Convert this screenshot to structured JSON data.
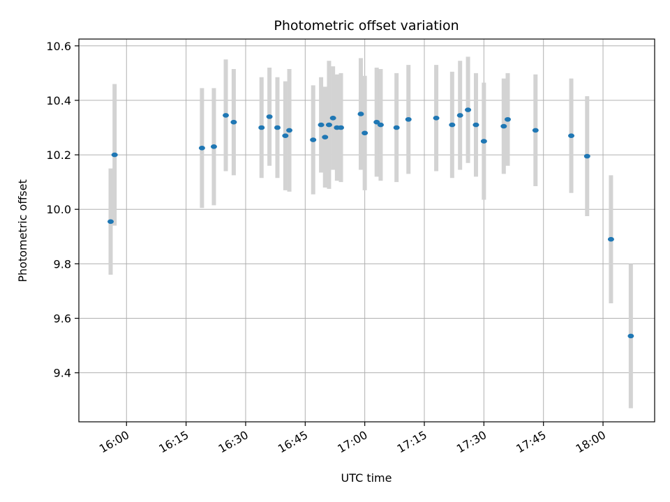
{
  "chart_data": {
    "type": "scatter",
    "title": "Photometric offset variation",
    "xlabel": "UTC time",
    "ylabel": "Photometric offset",
    "x_ticks": [
      "16:00",
      "16:15",
      "16:30",
      "16:45",
      "17:00",
      "17:15",
      "17:30",
      "17:45",
      "18:00"
    ],
    "y_ticks": [
      "9.4",
      "9.6",
      "9.8",
      "10.0",
      "10.2",
      "10.4",
      "10.6"
    ],
    "xlim": [
      "15:48",
      "18:13"
    ],
    "ylim": [
      9.22,
      10.625
    ],
    "grid": true,
    "colors": {
      "point": "#1f77b4",
      "errorbar": "#d3d3d3",
      "grid": "#b0b0b0"
    },
    "series": [
      {
        "points": [
          {
            "x": "15:56",
            "y": 9.955,
            "err": 0.195
          },
          {
            "x": "15:57",
            "y": 10.2,
            "err": 0.26
          },
          {
            "x": "16:19",
            "y": 10.225,
            "err": 0.22
          },
          {
            "x": "16:22",
            "y": 10.23,
            "err": 0.215
          },
          {
            "x": "16:25",
            "y": 10.345,
            "err": 0.205
          },
          {
            "x": "16:27",
            "y": 10.32,
            "err": 0.195
          },
          {
            "x": "16:34",
            "y": 10.3,
            "err": 0.185
          },
          {
            "x": "16:36",
            "y": 10.34,
            "err": 0.18
          },
          {
            "x": "16:38",
            "y": 10.3,
            "err": 0.185
          },
          {
            "x": "16:40",
            "y": 10.27,
            "err": 0.2
          },
          {
            "x": "16:41",
            "y": 10.29,
            "err": 0.225
          },
          {
            "x": "16:47",
            "y": 10.255,
            "err": 0.2
          },
          {
            "x": "16:49",
            "y": 10.31,
            "err": 0.175
          },
          {
            "x": "16:50",
            "y": 10.265,
            "err": 0.185
          },
          {
            "x": "16:51",
            "y": 10.31,
            "err": 0.235
          },
          {
            "x": "16:52",
            "y": 10.335,
            "err": 0.19
          },
          {
            "x": "16:53",
            "y": 10.3,
            "err": 0.195
          },
          {
            "x": "16:54",
            "y": 10.3,
            "err": 0.2
          },
          {
            "x": "16:59",
            "y": 10.35,
            "err": 0.205
          },
          {
            "x": "17:00",
            "y": 10.28,
            "err": 0.21
          },
          {
            "x": "17:03",
            "y": 10.32,
            "err": 0.2
          },
          {
            "x": "17:04",
            "y": 10.31,
            "err": 0.205
          },
          {
            "x": "17:08",
            "y": 10.3,
            "err": 0.2
          },
          {
            "x": "17:11",
            "y": 10.33,
            "err": 0.2
          },
          {
            "x": "17:18",
            "y": 10.335,
            "err": 0.195
          },
          {
            "x": "17:22",
            "y": 10.31,
            "err": 0.195
          },
          {
            "x": "17:24",
            "y": 10.345,
            "err": 0.2
          },
          {
            "x": "17:26",
            "y": 10.365,
            "err": 0.195
          },
          {
            "x": "17:28",
            "y": 10.31,
            "err": 0.19
          },
          {
            "x": "17:30",
            "y": 10.25,
            "err": 0.215
          },
          {
            "x": "17:35",
            "y": 10.305,
            "err": 0.175
          },
          {
            "x": "17:36",
            "y": 10.33,
            "err": 0.17
          },
          {
            "x": "17:43",
            "y": 10.29,
            "err": 0.205
          },
          {
            "x": "17:52",
            "y": 10.27,
            "err": 0.21
          },
          {
            "x": "17:56",
            "y": 10.195,
            "err": 0.22
          },
          {
            "x": "18:02",
            "y": 9.89,
            "err": 0.235
          },
          {
            "x": "18:07",
            "y": 9.535,
            "err": 0.265
          }
        ]
      }
    ]
  }
}
